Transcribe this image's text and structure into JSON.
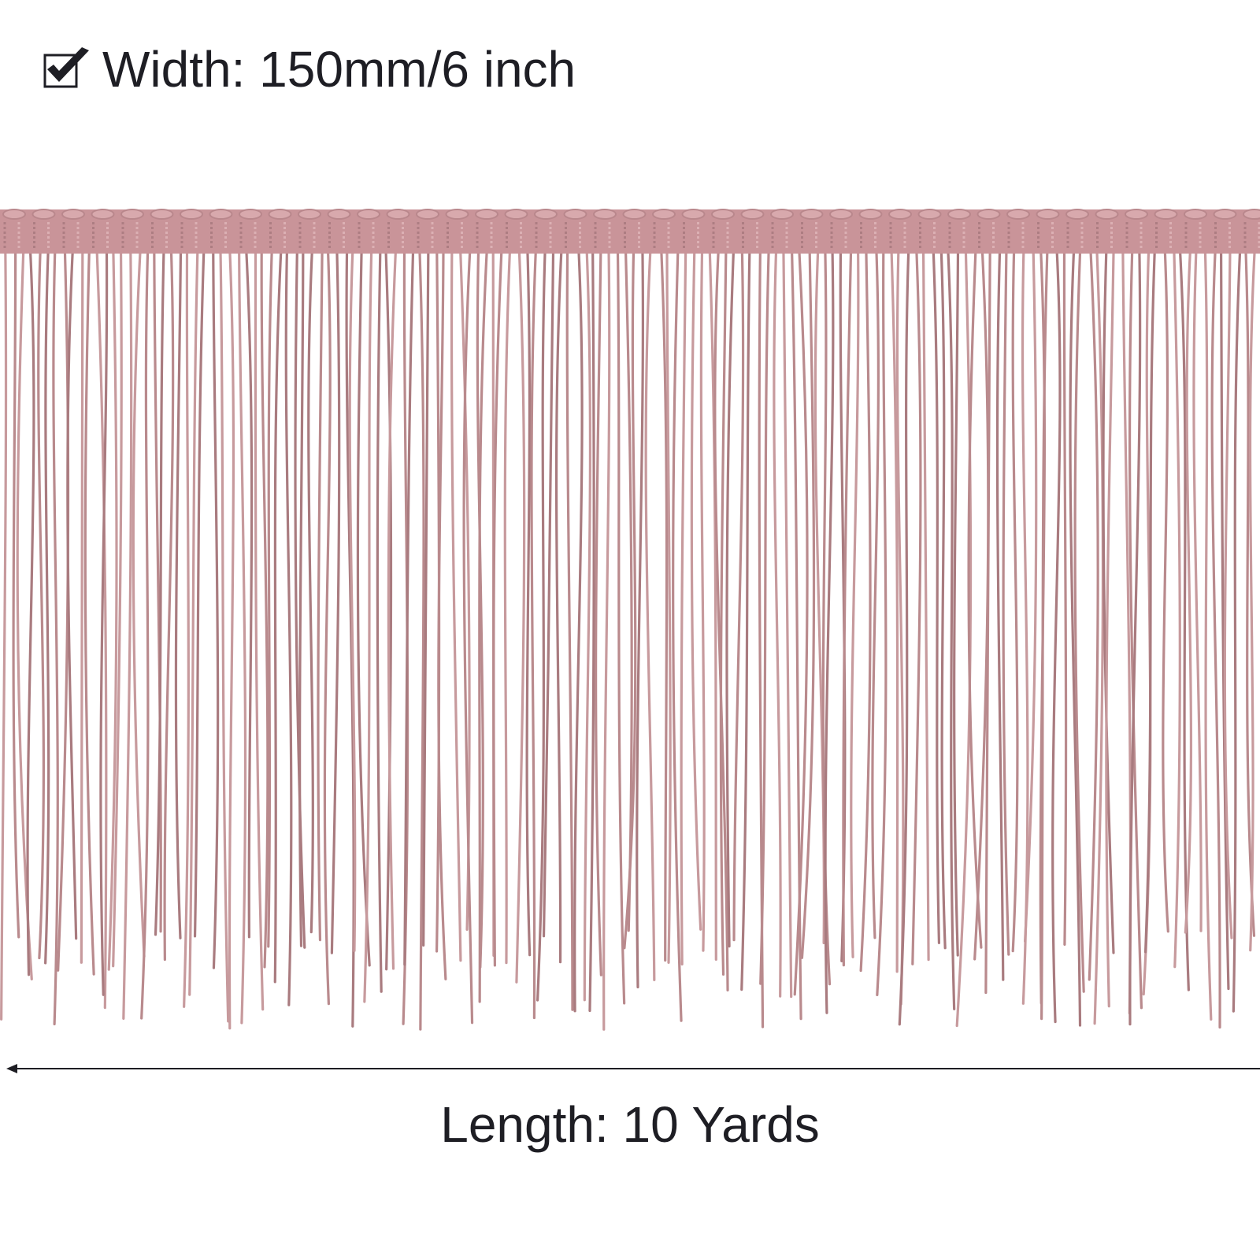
{
  "header": {
    "text": "Width: 150mm/6 inch"
  },
  "footer": {
    "text": "Length: 10 Yards"
  }
}
